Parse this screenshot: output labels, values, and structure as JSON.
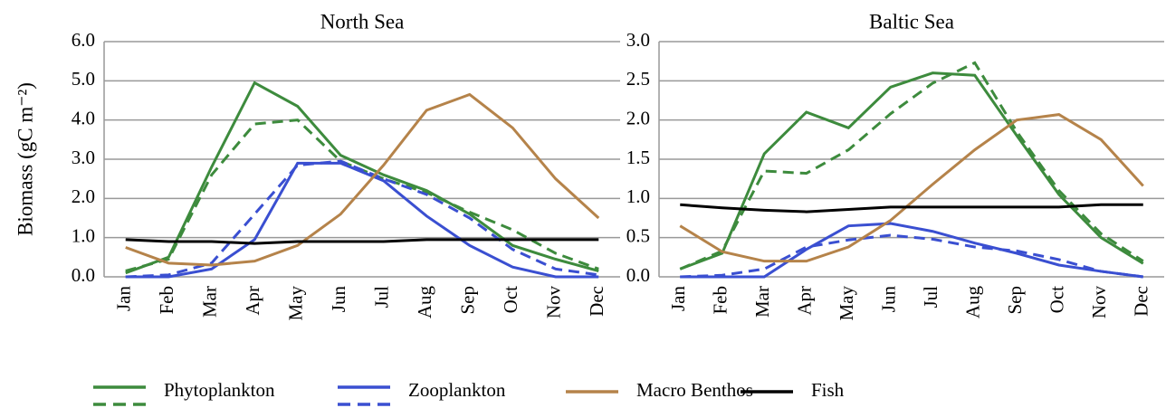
{
  "chart_data": [
    {
      "type": "line",
      "title": "North Sea",
      "y_label": "Biomass (gC m⁻²)",
      "categories": [
        "Jan",
        "Feb",
        "Mar",
        "Apr",
        "May",
        "Jun",
        "Jul",
        "Aug",
        "Sep",
        "Oct",
        "Nov",
        "Dec"
      ],
      "ylim": [
        0,
        6
      ],
      "yticks": [
        {
          "value": 0,
          "label": "0.0"
        },
        {
          "value": 1,
          "label": "1.0"
        },
        {
          "value": 2,
          "label": "2.0"
        },
        {
          "value": 3,
          "label": "3.0"
        },
        {
          "value": 4,
          "label": "4.0"
        },
        {
          "value": 5,
          "label": "5.0"
        },
        {
          "value": 6,
          "label": "6.0"
        }
      ],
      "grid": true,
      "series": [
        {
          "name": "Phytoplankton",
          "color": "#3d8b3d",
          "values": [
            0.1,
            0.5,
            2.8,
            4.95,
            4.35,
            3.1,
            2.6,
            2.2,
            1.6,
            0.8,
            0.45,
            0.15
          ]
        },
        {
          "color": "#3d8b3d",
          "dash": true,
          "values": [
            0.15,
            0.45,
            2.6,
            3.9,
            4.0,
            2.95,
            2.5,
            2.15,
            1.65,
            1.2,
            0.6,
            0.2
          ]
        },
        {
          "name": "Zooplankton",
          "color": "#3a4fd1",
          "values": [
            0,
            0,
            0.2,
            0.95,
            2.9,
            2.9,
            2.45,
            1.55,
            0.8,
            0.25,
            0,
            0
          ]
        },
        {
          "color": "#3a4fd1",
          "dash": true,
          "values": [
            0,
            0.05,
            0.35,
            1.6,
            2.85,
            2.95,
            2.5,
            2.1,
            1.5,
            0.7,
            0.2,
            0.05
          ]
        },
        {
          "name": "Macro Benthos",
          "color": "#b5834a",
          "values": [
            0.75,
            0.35,
            0.3,
            0.4,
            0.8,
            1.6,
            2.85,
            4.25,
            4.65,
            3.8,
            2.5,
            1.5
          ]
        },
        {
          "name": "Fish",
          "color": "#000000",
          "values": [
            0.95,
            0.9,
            0.9,
            0.85,
            0.9,
            0.9,
            0.9,
            0.95,
            0.95,
            0.95,
            0.95,
            0.95
          ]
        }
      ]
    },
    {
      "type": "line",
      "title": "Baltic Sea",
      "categories": [
        "Jan",
        "Feb",
        "Mar",
        "Apr",
        "May",
        "Jun",
        "Jul",
        "Aug",
        "Sep",
        "Oct",
        "Nov",
        "Dec"
      ],
      "ylim": [
        0,
        3
      ],
      "yticks": [
        {
          "value": 0,
          "label": "0.0"
        },
        0.5,
        {
          "value": 1,
          "label": "1.0"
        },
        1.5,
        {
          "value": 2,
          "label": "2.0"
        },
        2.5,
        {
          "value": 3,
          "label": "3.0"
        }
      ],
      "grid": true,
      "series": [
        {
          "name": "Phytoplankton",
          "color": "#3d8b3d",
          "values": [
            0.1,
            0.3,
            1.57,
            2.1,
            1.9,
            2.42,
            2.6,
            2.57,
            1.8,
            1.05,
            0.5,
            0.17
          ]
        },
        {
          "color": "#3d8b3d",
          "dash": true,
          "values": [
            0.1,
            0.33,
            1.35,
            1.32,
            1.62,
            2.08,
            2.47,
            2.73,
            1.85,
            1.1,
            0.55,
            0.2
          ]
        },
        {
          "name": "Zooplankton",
          "color": "#3a4fd1",
          "values": [
            0,
            0,
            0,
            0.35,
            0.65,
            0.68,
            0.58,
            0.43,
            0.3,
            0.15,
            0.07,
            0
          ]
        },
        {
          "color": "#3a4fd1",
          "dash": true,
          "values": [
            0,
            0.02,
            0.1,
            0.38,
            0.47,
            0.53,
            0.48,
            0.38,
            0.33,
            0.22,
            0.07,
            0
          ]
        },
        {
          "name": "Macro Benthos",
          "color": "#b5834a",
          "values": [
            0.65,
            0.32,
            0.2,
            0.2,
            0.38,
            0.72,
            1.18,
            1.62,
            2.0,
            2.07,
            1.75,
            1.16
          ]
        },
        {
          "name": "Fish",
          "color": "#000000",
          "values": [
            0.92,
            0.88,
            0.85,
            0.83,
            0.86,
            0.89,
            0.89,
            0.89,
            0.89,
            0.89,
            0.92,
            0.92
          ]
        }
      ]
    }
  ]
}
